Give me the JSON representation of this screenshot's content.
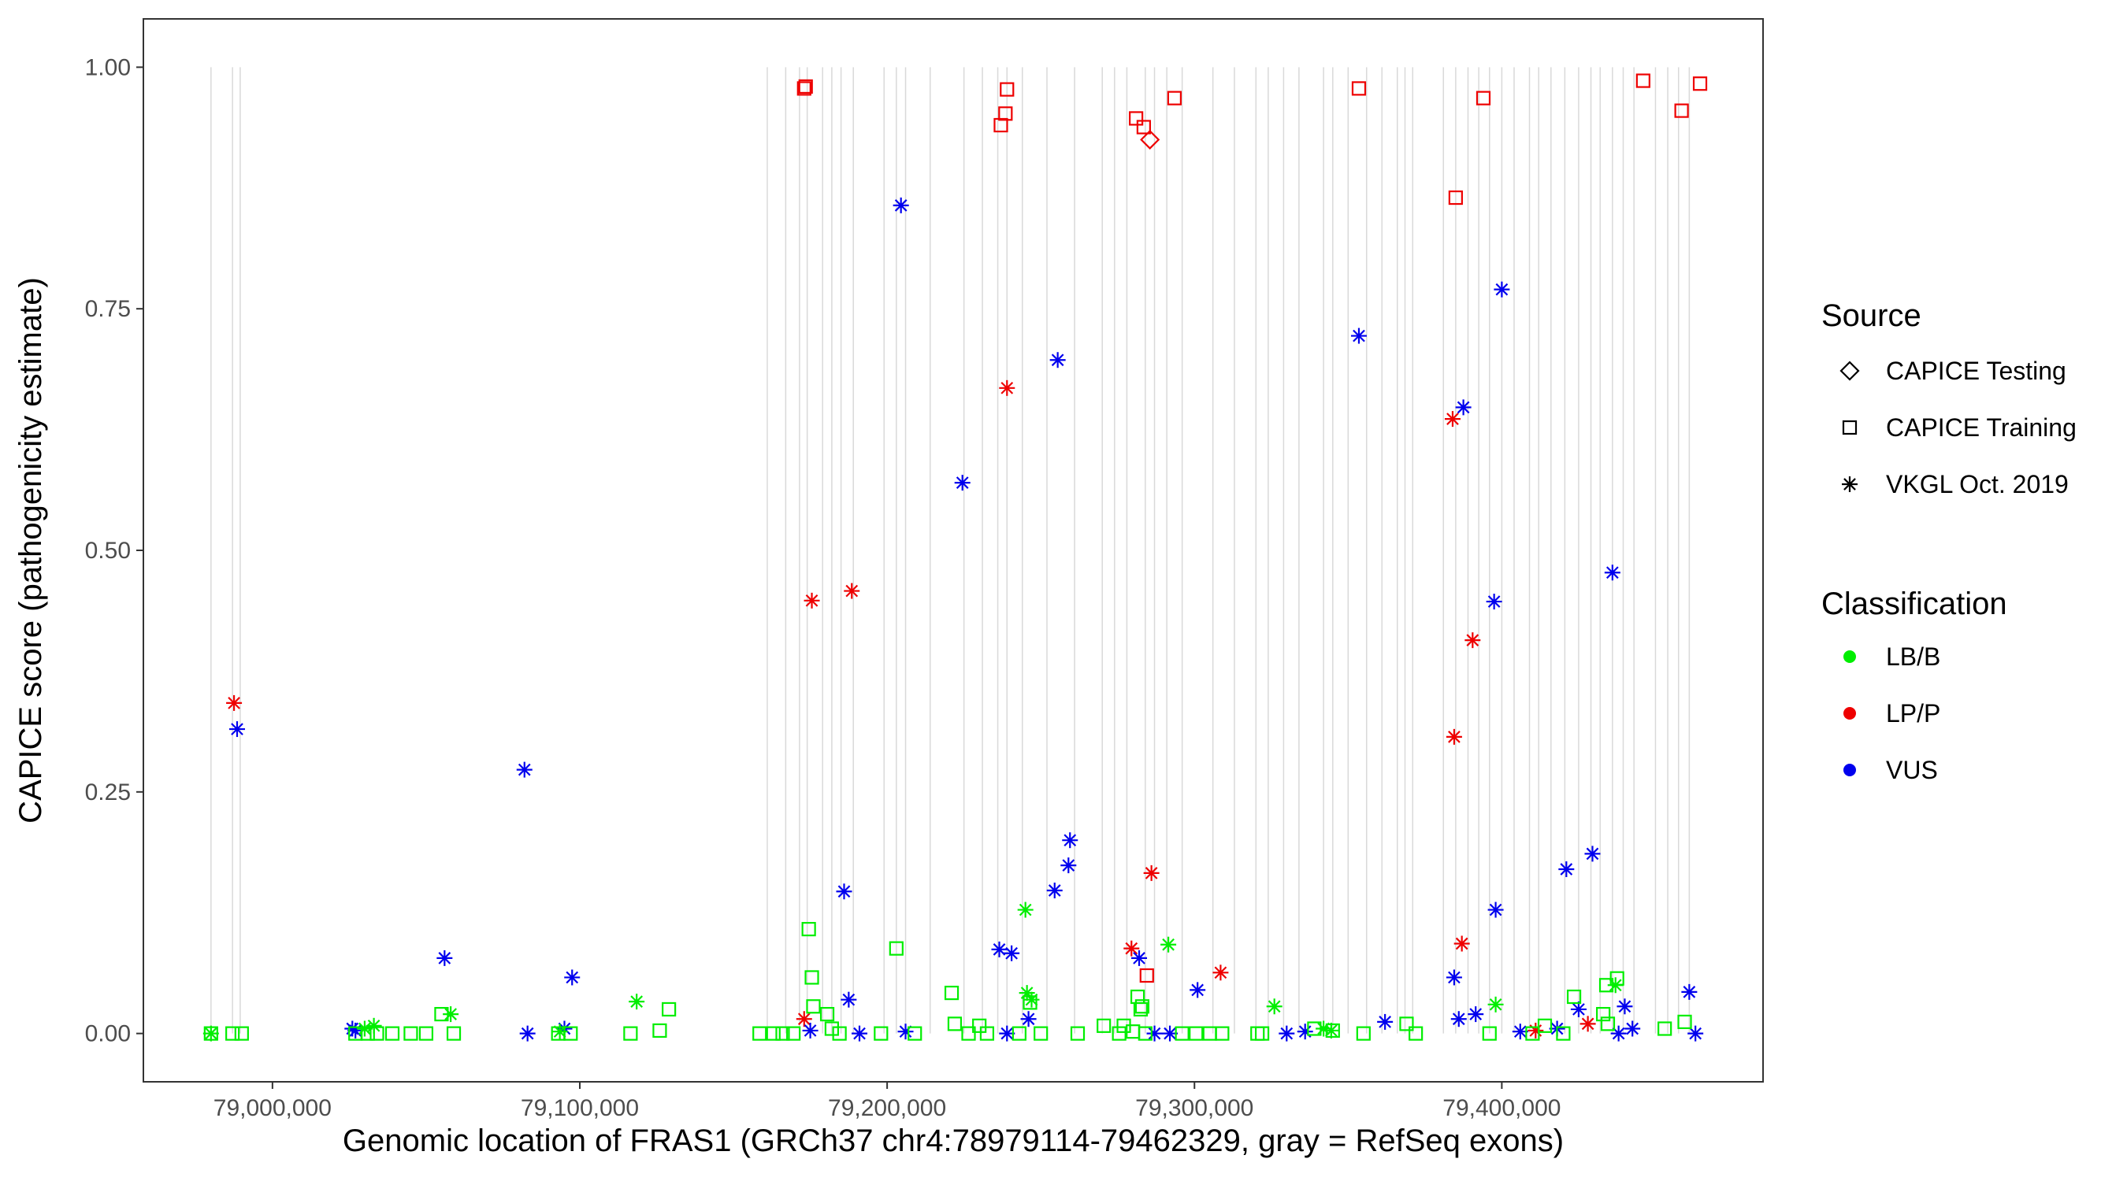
{
  "chart_data": {
    "type": "scatter",
    "xlabel": "Genomic location of FRAS1 (GRCh37 chr4:78979114-79462329, gray = RefSeq exons)",
    "ylabel": "CAPICE score (pathogenicity estimate)",
    "xlim": [
      78958000,
      79485000
    ],
    "ylim": [
      -0.05,
      1.05
    ],
    "x_ticks": [
      79000000,
      79100000,
      79200000,
      79300000,
      79400000
    ],
    "x_tick_labels": [
      "79,000,000",
      "79,100,000",
      "79,200,000",
      "79,300,000",
      "79,400,000"
    ],
    "y_ticks": [
      0,
      0.25,
      0.5,
      0.75,
      1.0
    ],
    "y_tick_labels": [
      "0.00",
      "0.25",
      "0.50",
      "0.75",
      "1.00"
    ],
    "grid": false,
    "exons": [
      78980000,
      78987000,
      78989500,
      79161000,
      79167000,
      79171500,
      79174000,
      79179000,
      79182000,
      79185000,
      79189000,
      79199000,
      79203000,
      79206000,
      79214000,
      79225000,
      79231000,
      79236000,
      79239000,
      79244000,
      79252000,
      79261000,
      79270000,
      79274000,
      79278000,
      79284000,
      79287000,
      79291000,
      79296000,
      79306000,
      79313000,
      79320000,
      79324000,
      79329000,
      79334000,
      79342000,
      79345000,
      79350000,
      79356000,
      79361000,
      79366000,
      79368500,
      79371000,
      79381000,
      79385000,
      79389000,
      79392500,
      79396000,
      79400000,
      79404000,
      79409000,
      79412000,
      79416000,
      79420500,
      79425000,
      79429000,
      79432000,
      79436000,
      79439500,
      79443000,
      79450000,
      79454000,
      79457500,
      79461000
    ],
    "legend": {
      "source_title": "Source",
      "source_entries": [
        {
          "label": "CAPICE Testing",
          "shape": "diamond"
        },
        {
          "label": "CAPICE Training",
          "shape": "square"
        },
        {
          "label": "VKGL Oct. 2019",
          "shape": "asterisk"
        }
      ],
      "class_title": "Classification",
      "class_entries": [
        {
          "label": "LB/B",
          "color": "#00ee00"
        },
        {
          "label": "LP/P",
          "color": "#ee0000"
        },
        {
          "label": "VUS",
          "color": "#0000ee"
        }
      ]
    },
    "series": [
      {
        "source": "CAPICE Training",
        "class": "LP/P",
        "x": [
          79173000,
          79173500,
          79237000,
          79238500,
          79239000,
          79281000,
          79283500,
          79293500,
          79353500,
          79385000,
          79394000,
          79446000,
          79458500,
          79464500
        ],
        "y": [
          0.978,
          0.98,
          0.94,
          0.952,
          0.977,
          0.947,
          0.938,
          0.968,
          0.978,
          0.865,
          0.968,
          0.986,
          0.955,
          0.983
        ]
      },
      {
        "source": "CAPICE Training",
        "class": "LP/P",
        "x": [
          79284500
        ],
        "y": [
          0.06
        ]
      },
      {
        "source": "CAPICE Testing",
        "class": "LP/P",
        "x": [
          79285500
        ],
        "y": [
          0.925
        ]
      },
      {
        "source": "VKGL Oct. 2019",
        "class": "LP/P",
        "x": [
          78987500,
          79173000,
          79175500,
          79188500,
          79239000,
          79279500,
          79286000,
          79308500,
          79384000,
          79384500,
          79387000,
          79390500,
          79411000,
          79428000
        ],
        "y": [
          0.342,
          0.015,
          0.448,
          0.458,
          0.668,
          0.088,
          0.166,
          0.063,
          0.636,
          0.307,
          0.093,
          0.407,
          0.003,
          0.01
        ]
      },
      {
        "source": "VKGL Oct. 2019",
        "class": "VUS",
        "x": [
          78988500,
          79026000,
          79027000,
          79056000,
          79082000,
          79083000,
          79095000,
          79097500,
          79175000,
          79186000,
          79187500,
          79191000,
          79204500,
          79206000,
          79224500,
          79236500,
          79239000,
          79240500,
          79246000,
          79254500,
          79255500,
          79259000,
          79259500,
          79282000,
          79287000,
          79292000,
          79301000,
          79330000,
          79336000,
          79353500,
          79362000,
          79384500,
          79386000,
          79387500,
          79391500,
          79397500,
          79398000,
          79400000,
          79406000,
          79418000,
          79421000,
          79425000,
          79429500,
          79436000,
          79438000,
          79440000,
          79442500,
          79461000,
          79463000
        ],
        "y": [
          0.315,
          0.005,
          0.003,
          0.078,
          0.273,
          0.0,
          0.005,
          0.058,
          0.003,
          0.147,
          0.035,
          0.0,
          0.857,
          0.002,
          0.57,
          0.087,
          0.0,
          0.083,
          0.015,
          0.148,
          0.697,
          0.174,
          0.2,
          0.078,
          0.0,
          0.0,
          0.045,
          0.0,
          0.002,
          0.722,
          0.012,
          0.058,
          0.015,
          0.648,
          0.02,
          0.447,
          0.128,
          0.77,
          0.002,
          0.005,
          0.17,
          0.025,
          0.186,
          0.477,
          0.0,
          0.028,
          0.005,
          0.043,
          0.0
        ]
      },
      {
        "source": "VKGL Oct. 2019",
        "class": "LB/B",
        "x": [
          78980000,
          79030000,
          79033000,
          79058000,
          79093500,
          79118500,
          79245000,
          79245500,
          79247000,
          79291500,
          79326000,
          79342000,
          79344500,
          79398000,
          79437000
        ],
        "y": [
          0.0,
          0.005,
          0.008,
          0.02,
          0.002,
          0.033,
          0.128,
          0.042,
          0.035,
          0.092,
          0.028,
          0.005,
          0.003,
          0.03,
          0.05
        ]
      },
      {
        "source": "CAPICE Training",
        "class": "LB/B",
        "x": [
          78980000,
          78987000,
          78990000,
          79027000,
          79031000,
          79034000,
          79039000,
          79045000,
          79050000,
          79055000,
          79059000,
          79093000,
          79097000,
          79116500,
          79126000,
          79129000,
          79158500,
          79163000,
          79166000,
          79169500,
          79174500,
          79175500,
          79176000,
          79180500,
          79182000,
          79184500,
          79198000,
          79203000,
          79209000,
          79221000,
          79222000,
          79226500,
          79230000,
          79232500,
          79243000,
          79246500,
          79250000,
          79262000,
          79270500,
          79275500,
          79277000,
          79280000,
          79281500,
          79282500,
          79283000,
          79284000,
          79296000,
          79300500,
          79305000,
          79309000,
          79320500,
          79322000,
          79339000,
          79345000,
          79355000,
          79369000,
          79372000,
          79396000,
          79410000,
          79414000,
          79420000,
          79423500,
          79433000,
          79434000,
          79434500,
          79437500,
          79453000,
          79459500
        ],
        "y": [
          0.0,
          0.0,
          0.0,
          0.0,
          0.0,
          0.0,
          0.0,
          0.0,
          0.0,
          0.02,
          0.0,
          0.0,
          0.0,
          0.0,
          0.003,
          0.025,
          0.0,
          0.0,
          0.0,
          0.0,
          0.108,
          0.058,
          0.028,
          0.02,
          0.005,
          0.0,
          0.0,
          0.088,
          0.0,
          0.042,
          0.01,
          0.0,
          0.008,
          0.0,
          0.0,
          0.032,
          0.0,
          0.0,
          0.008,
          0.0,
          0.008,
          0.002,
          0.038,
          0.025,
          0.028,
          0.0,
          0.0,
          0.0,
          0.0,
          0.0,
          0.0,
          0.0,
          0.005,
          0.003,
          0.0,
          0.01,
          0.0,
          0.0,
          0.0,
          0.008,
          0.0,
          0.038,
          0.02,
          0.05,
          0.01,
          0.057,
          0.005,
          0.012
        ]
      }
    ]
  }
}
